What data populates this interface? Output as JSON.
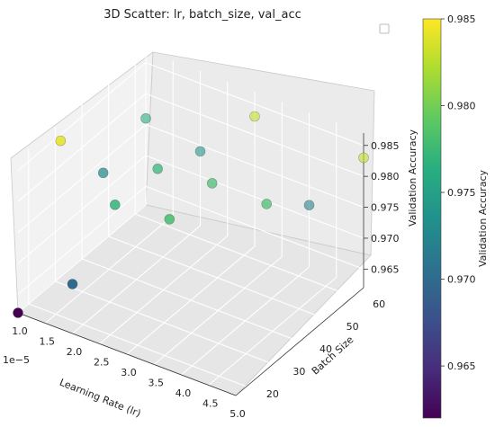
{
  "chart_data": {
    "type": "scatter",
    "title": "3D Scatter: lr, batch_size, val_acc",
    "xlabel": "Learning Rate (lr)",
    "ylabel": "Batch Size",
    "zlabel": "Validation Accuracy",
    "x_offset_label": "1e−5",
    "x_ticks": [
      "1.0",
      "1.5",
      "2.0",
      "2.5",
      "3.0",
      "3.5",
      "4.0",
      "4.5",
      "5.0"
    ],
    "y_ticks": [
      "20",
      "30",
      "40",
      "50",
      "60"
    ],
    "z_ticks": [
      "0.965",
      "0.970",
      "0.975",
      "0.980",
      "0.985"
    ],
    "xlim": [
      1.0,
      5.0
    ],
    "ylim": [
      16,
      64
    ],
    "zlim": [
      0.962,
      0.987
    ],
    "grid": true,
    "colorbar": {
      "label": "Validation Accuracy",
      "ticks": [
        "0.965",
        "0.970",
        "0.975",
        "0.980",
        "0.985"
      ],
      "range": [
        0.962,
        0.985
      ],
      "colormap": "viridis"
    },
    "points": [
      {
        "x": 1.0,
        "y": 32,
        "z": 0.984
      },
      {
        "x": 1.0,
        "y": 16,
        "z": 0.962
      },
      {
        "x": 1.0,
        "y": 64,
        "z": 0.976
      },
      {
        "x": 3.0,
        "y": 64,
        "z": 0.983
      },
      {
        "x": 5.0,
        "y": 64,
        "z": 0.983
      },
      {
        "x": 2.0,
        "y": 64,
        "z": 0.974
      },
      {
        "x": 4.0,
        "y": 64,
        "z": 0.972
      },
      {
        "x": 1.0,
        "y": 48,
        "z": 0.973
      },
      {
        "x": 2.0,
        "y": 48,
        "z": 0.977
      },
      {
        "x": 3.0,
        "y": 48,
        "z": 0.978
      },
      {
        "x": 4.0,
        "y": 48,
        "z": 0.978
      },
      {
        "x": 2.0,
        "y": 32,
        "z": 0.977
      },
      {
        "x": 3.0,
        "y": 32,
        "z": 0.978
      },
      {
        "x": 2.0,
        "y": 16,
        "z": 0.97
      }
    ]
  }
}
